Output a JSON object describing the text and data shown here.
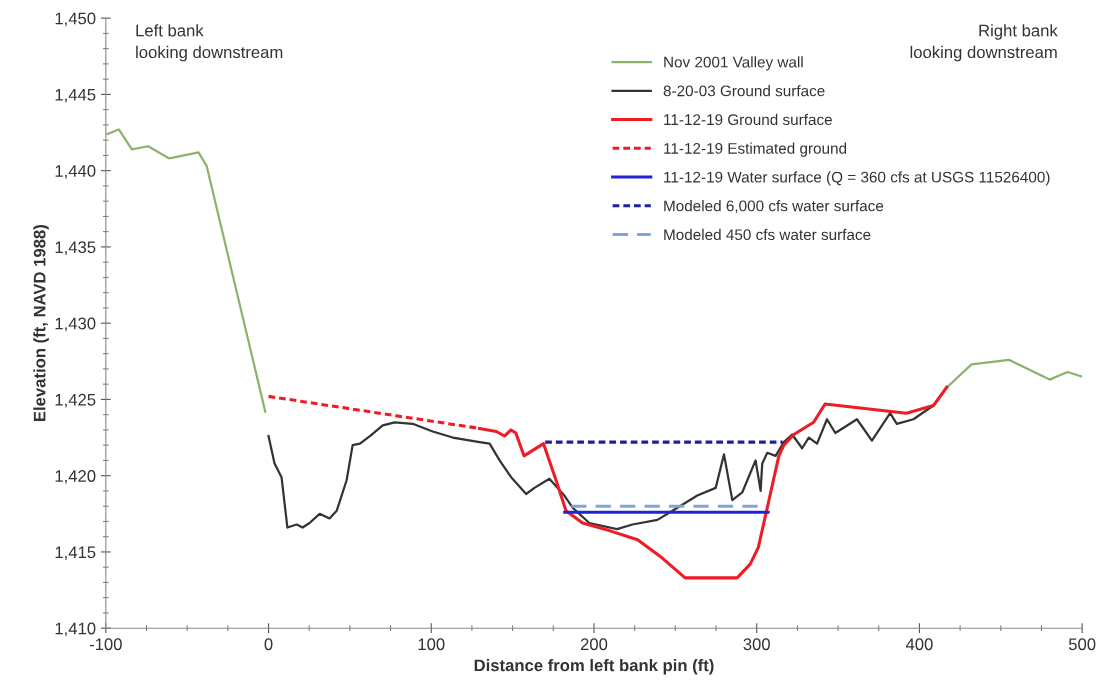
{
  "chart_data": {
    "type": "line",
    "xlabel": "Distance from left bank pin (ft)",
    "ylabel": "Elevation (ft, NAVD 1988)",
    "xlim": [
      -100,
      500
    ],
    "xticks": [
      -100,
      0,
      100,
      200,
      300,
      400,
      500
    ],
    "ylim": [
      1410,
      1450
    ],
    "yticks": [
      {
        "value": 1410,
        "label": "1,410"
      },
      {
        "value": 1415,
        "label": "1,415"
      },
      {
        "value": 1420,
        "label": "1,420"
      },
      {
        "value": 1425,
        "label": "1,425"
      },
      {
        "value": 1430,
        "label": "1,430"
      },
      {
        "value": 1435,
        "label": "1,435"
      },
      {
        "value": 1440,
        "label": "1,440"
      },
      {
        "value": 1445,
        "label": "1,445"
      },
      {
        "value": 1450,
        "label": "1,450"
      }
    ],
    "grid": false,
    "legend": "top right",
    "annotations": [
      "Left bank\nlooking downstream",
      "Right bank\nlooking downstream"
    ],
    "series": [
      {
        "name": "Nov 2001 Valley wall",
        "color": "#8db36a",
        "line_style": "solid",
        "x": [
          -99,
          -92,
          -84,
          -74,
          -61,
          -43,
          -38,
          -2,
          null,
          417,
          432,
          455,
          480,
          491,
          500
        ],
        "values": [
          1442.4,
          1442.7,
          1441.4,
          1441.6,
          1440.8,
          1441.2,
          1440.3,
          1424.2,
          null,
          1425.8,
          1427.3,
          1427.6,
          1426.3,
          1426.8,
          1426.5
        ]
      },
      {
        "name": "8-20-03 Ground surface",
        "color": "#333333",
        "line_style": "solid",
        "x": [
          0,
          3.7,
          8,
          11.6,
          17.3,
          20.9,
          25.2,
          31.4,
          37.5,
          41.9,
          48,
          51.7,
          56.2,
          62.3,
          70.2,
          77.6,
          88.6,
          100.9,
          113.2,
          129.7,
          135.9,
          142,
          149.1,
          158.3,
          163.4,
          172.6,
          181.8,
          186.9,
          197.1,
          214.1,
          223.7,
          239,
          251.3,
          263.5,
          274.8,
          279.9,
          285,
          291.1,
          299.3,
          302.4,
          303.4,
          306.5,
          311.6,
          316.7,
          321.8,
          327.9,
          332,
          337.1,
          343.2,
          348.3,
          361.6,
          370.8,
          382,
          386.1,
          396.3,
          408.6,
          416.8
        ],
        "values": [
          1422.6,
          1420.8,
          1419.9,
          1416.6,
          1416.8,
          1416.6,
          1416.9,
          1417.5,
          1417.2,
          1417.7,
          1419.7,
          1422.0,
          1422.1,
          1422.6,
          1423.3,
          1423.5,
          1423.4,
          1422.9,
          1422.5,
          1422.2,
          1422.1,
          1421.0,
          1419.9,
          1418.8,
          1419.2,
          1419.8,
          1418.7,
          1417.9,
          1416.9,
          1416.5,
          1416.8,
          1417.1,
          1417.9,
          1418.7,
          1419.2,
          1421.4,
          1418.4,
          1418.9,
          1421.0,
          1419.0,
          1420.8,
          1421.5,
          1421.3,
          1422.2,
          1422.7,
          1421.8,
          1422.5,
          1422.1,
          1423.7,
          1422.8,
          1423.7,
          1422.3,
          1424.1,
          1423.4,
          1423.7,
          1424.6,
          1425.8
        ]
      },
      {
        "name": "11-12-19 Ground surface",
        "color": "#ee1c25",
        "line_style": "solid",
        "x": [
          129.7,
          140,
          145,
          149,
          152,
          157,
          169,
          176.7,
          182.8,
          193,
          209.4,
          226.8,
          242,
          256,
          288,
          296,
          301,
          306.5,
          313.6,
          316.7,
          322.8,
          335,
          342,
          392,
          408.6,
          416.8
        ],
        "values": [
          1423.1,
          1422.9,
          1422.6,
          1423.0,
          1422.8,
          1421.3,
          1422.1,
          1419.7,
          1417.7,
          1416.9,
          1416.4,
          1415.8,
          1414.6,
          1413.3,
          1413.3,
          1414.2,
          1415.3,
          1417.9,
          1421.3,
          1422.0,
          1422.7,
          1423.5,
          1424.7,
          1424.1,
          1424.6,
          1425.8
        ]
      },
      {
        "name": "11-12-19 Estimated ground",
        "color": "#ee1c25",
        "line_style": "dotted",
        "x": [
          0,
          129.7
        ],
        "values": [
          1425.2,
          1423.1
        ]
      },
      {
        "name": "11-12-19 Water surface (Q = 360 cfs at USGS 11526400)",
        "color": "#2323d6",
        "line_style": "solid",
        "x": [
          182,
          307
        ],
        "values": [
          1417.6,
          1417.6
        ]
      },
      {
        "name": "Modeled 6,000 cfs water surface",
        "color": "#1f1f9e",
        "line_style": "dotted",
        "x": [
          170,
          316
        ],
        "values": [
          1422.2,
          1422.2
        ]
      },
      {
        "name": "Modeled 450 cfs water surface",
        "color": "#7fa6d8",
        "line_style": "dashed",
        "x": [
          186,
          306
        ],
        "values": [
          1418.0,
          1418.0
        ]
      }
    ]
  }
}
